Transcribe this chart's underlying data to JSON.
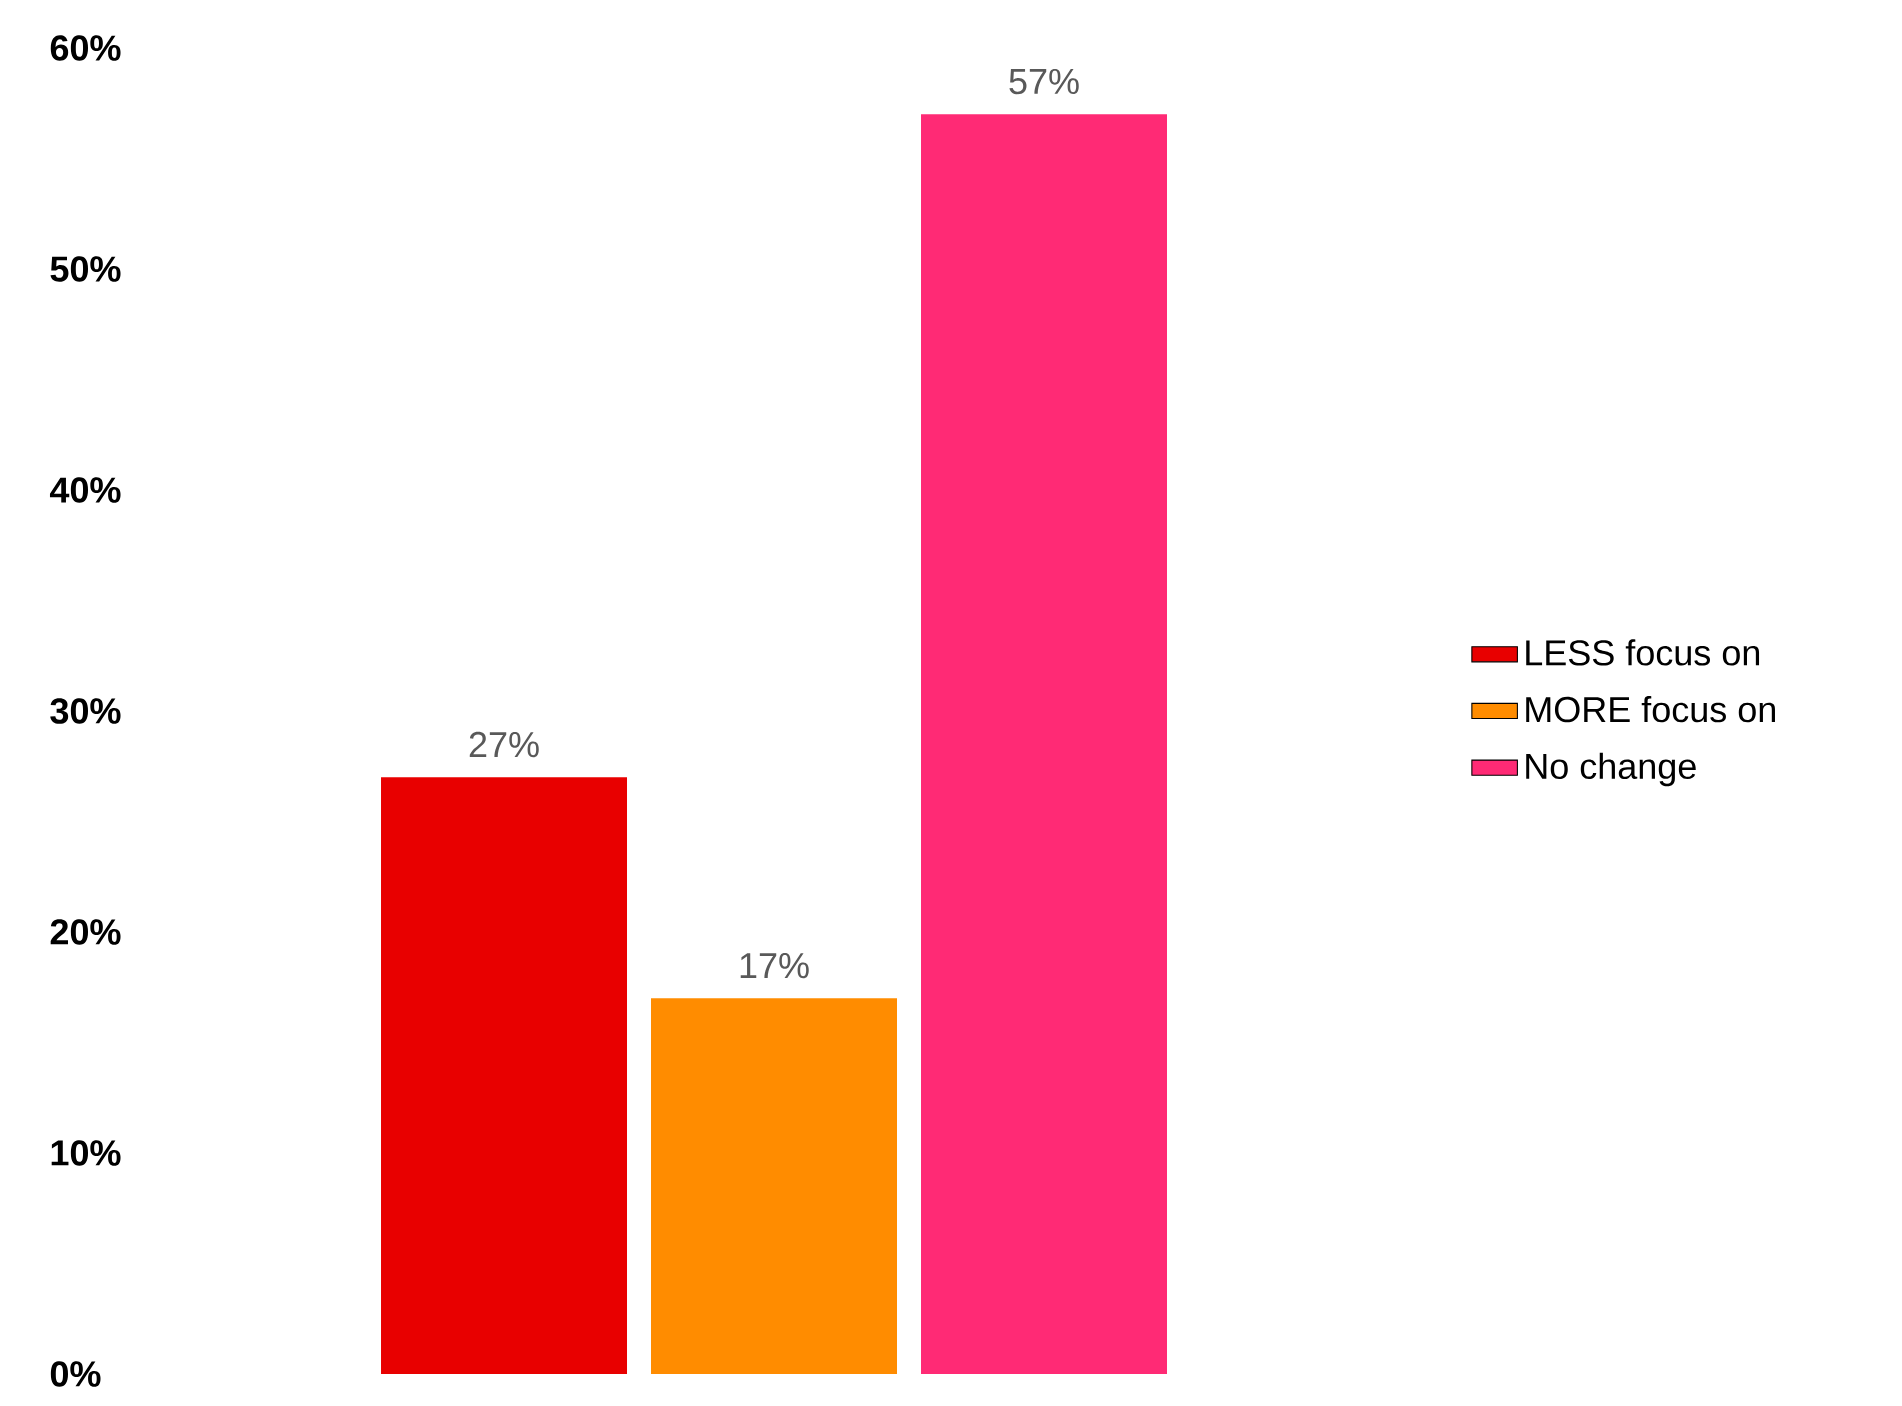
{
  "chart_data": {
    "type": "bar",
    "categories": [
      null
    ],
    "series": [
      {
        "name": "LESS focus on",
        "color": "#e80000",
        "values": [
          27
        ],
        "value_labels": [
          "27%"
        ]
      },
      {
        "name": "MORE focus on",
        "color": "#ff8c00",
        "values": [
          17
        ],
        "value_labels": [
          "17%"
        ]
      },
      {
        "name": "No change",
        "color": "#ff2a75",
        "values": [
          57
        ],
        "value_labels": [
          "57%"
        ]
      }
    ],
    "ylim": [
      0,
      60
    ],
    "yticks": [
      {
        "value": 0,
        "label": "0%"
      },
      {
        "value": 10,
        "label": "10%"
      },
      {
        "value": 20,
        "label": "20%"
      },
      {
        "value": 30,
        "label": "30%"
      },
      {
        "value": 40,
        "label": "40%"
      },
      {
        "value": 50,
        "label": "50%"
      },
      {
        "value": 60,
        "label": "60%"
      }
    ],
    "legend": "right",
    "grid": false
  }
}
